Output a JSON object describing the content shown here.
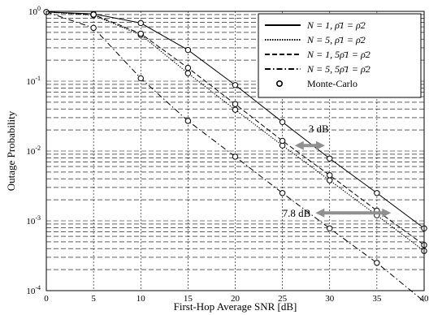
{
  "chart_data": {
    "type": "line",
    "xlabel": "First-Hop Average SNR [dB]",
    "ylabel": "Outage Probability",
    "xlim": [
      0,
      40
    ],
    "ylim": [
      0.0001,
      1
    ],
    "y_scale": "log",
    "grid": true,
    "legend_position": "top-right",
    "x_ticks": [
      "0",
      "5",
      "10",
      "15",
      "20",
      "25",
      "30",
      "35",
      "40"
    ],
    "y_ticks": [
      {
        "value": 1,
        "base": "10",
        "exp": "0"
      },
      {
        "value": 0.1,
        "base": "10",
        "exp": "-1"
      },
      {
        "value": 0.01,
        "base": "10",
        "exp": "-2"
      },
      {
        "value": 0.001,
        "base": "10",
        "exp": "-3"
      },
      {
        "value": 0.0001,
        "base": "10",
        "exp": "-4"
      }
    ],
    "x": [
      0,
      5,
      10,
      15,
      20,
      25,
      30,
      35,
      40
    ],
    "series": [
      {
        "name": "N = 1,  ρ̄1 = ρ̄2",
        "style": "solid",
        "values": [
          0.98,
          0.92,
          0.68,
          0.28,
          0.088,
          0.026,
          0.0078,
          0.0025,
          0.00078
        ]
      },
      {
        "name": "N = 5,  ρ̄1 = ρ̄2",
        "style": "dotted",
        "values": [
          0.98,
          0.88,
          0.46,
          0.13,
          0.039,
          0.012,
          0.0038,
          0.0012,
          0.00037
        ]
      },
      {
        "name": "N = 1,  5ρ̄1 = ρ̄2",
        "style": "dashed",
        "values": [
          0.98,
          0.9,
          0.48,
          0.155,
          0.047,
          0.014,
          0.0045,
          0.0014,
          0.00045
        ]
      },
      {
        "name": "N = 5,  5ρ̄1 = ρ̄2",
        "style": "dashdot",
        "values": [
          0.98,
          0.58,
          0.11,
          0.027,
          0.0083,
          0.0025,
          0.00078,
          0.00025,
          7e-05
        ]
      }
    ],
    "monte_carlo_label": "Monte-Carlo",
    "monte_carlo_points": [
      {
        "series": 0,
        "x": [
          5,
          10,
          15,
          20,
          25,
          30,
          35,
          40
        ]
      },
      {
        "series": 1,
        "x": [
          5,
          10,
          15,
          20,
          25,
          30,
          35,
          40
        ]
      },
      {
        "series": 2,
        "x": [
          5,
          10,
          15,
          20,
          25,
          30,
          35,
          40
        ]
      },
      {
        "series": 3,
        "x": [
          0,
          5,
          10,
          15,
          20,
          25,
          30,
          35
        ]
      }
    ],
    "annotations": [
      {
        "text": "3 dB",
        "arrow_x": [
          26.3,
          29.5
        ],
        "y": 0.012
      },
      {
        "text": "7.8 dB",
        "arrow_x": [
          28.5,
          36.5
        ],
        "y": 0.0013
      }
    ],
    "colors": {
      "lines": "#000000",
      "arrow": "#909090",
      "grid": "#000000"
    }
  }
}
